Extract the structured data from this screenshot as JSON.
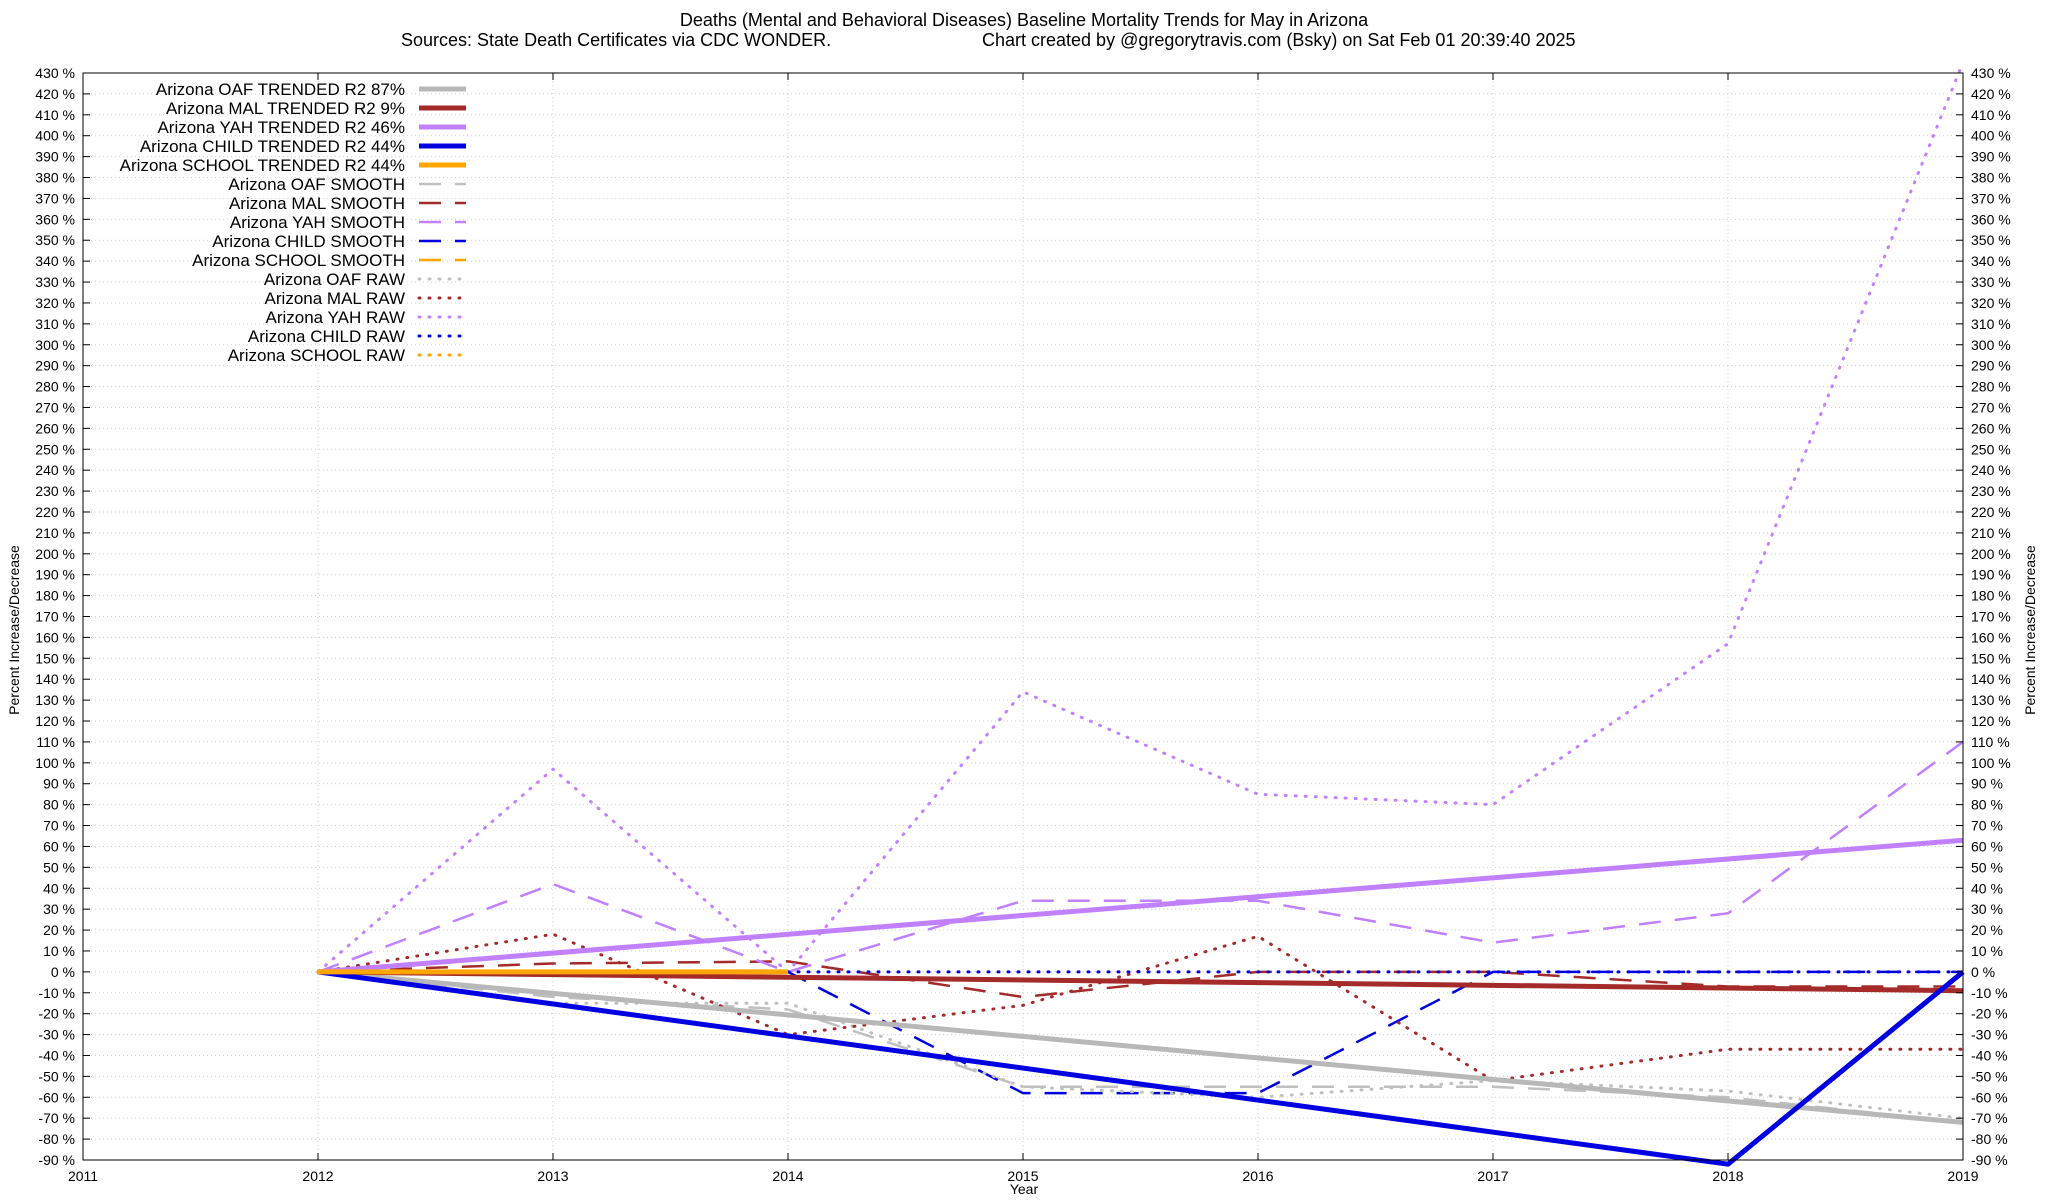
{
  "chart_data": {
    "type": "line",
    "title": "Deaths (Mental and Behavioral Diseases)  Baseline Mortality Trends for May in Arizona",
    "subtitle_left": "Sources: State Death Certificates via CDC WONDER.",
    "subtitle_right": "Chart created by @gregorytravis.com (Bsky) on Sat Feb 01 20:39:40 2025",
    "xlabel": "Year",
    "ylabel_left": "Percent Increase/Decrease",
    "ylabel_right": "Percent Increase/Decrease",
    "xlim": [
      2011,
      2019
    ],
    "ylim": [
      -90,
      430
    ],
    "x_ticks": [
      2011,
      2012,
      2013,
      2014,
      2015,
      2016,
      2017,
      2018,
      2019
    ],
    "y_tick_step": 10,
    "y_tick_suffix": " %",
    "grid": true,
    "legend_position": "top-left",
    "series": [
      {
        "name": "Arizona OAF TRENDED R2  87%",
        "style": "trend",
        "color": "#b8b8b8",
        "x": [
          2012,
          2019
        ],
        "y": [
          0,
          -72
        ]
      },
      {
        "name": "Arizona MAL TRENDED R2  9%",
        "style": "trend",
        "color": "#a52a2a",
        "x": [
          2012,
          2019
        ],
        "y": [
          0,
          -9
        ]
      },
      {
        "name": "Arizona YAH TRENDED R2  46%",
        "style": "trend",
        "color": "#c080ff",
        "x": [
          2012,
          2019
        ],
        "y": [
          0,
          63
        ]
      },
      {
        "name": "Arizona CHILD TRENDED R2  44%",
        "style": "trend",
        "color": "#0000e0",
        "x": [
          2012,
          2018,
          2019
        ],
        "y": [
          0,
          -92,
          0
        ]
      },
      {
        "name": "Arizona SCHOOL TRENDED R2  44%",
        "style": "trend",
        "color": "#ffa500",
        "x": [
          2012,
          2014
        ],
        "y": [
          0,
          0
        ]
      },
      {
        "name": "Arizona OAF SMOOTH",
        "style": "smooth",
        "color": "#c0c0c0",
        "x": [
          2012,
          2013,
          2014,
          2015,
          2016,
          2017,
          2018,
          2019
        ],
        "y": [
          0,
          -12,
          -18,
          -55,
          -55,
          -55,
          -60,
          -72
        ]
      },
      {
        "name": "Arizona MAL SMOOTH",
        "style": "smooth",
        "color": "#a52a2a",
        "x": [
          2012,
          2013,
          2014,
          2015,
          2016,
          2017,
          2018,
          2019
        ],
        "y": [
          0,
          4,
          5,
          -12,
          0,
          0,
          -7,
          -7
        ]
      },
      {
        "name": "Arizona YAH SMOOTH",
        "style": "smooth",
        "color": "#c080ff",
        "x": [
          2012,
          2013,
          2014,
          2015,
          2016,
          2017,
          2018,
          2019
        ],
        "y": [
          0,
          42,
          0,
          34,
          34,
          14,
          28,
          110
        ]
      },
      {
        "name": "Arizona CHILD SMOOTH",
        "style": "smooth",
        "color": "#0000e0",
        "x": [
          2012,
          2013,
          2014,
          2015,
          2016,
          2017,
          2018,
          2019
        ],
        "y": [
          0,
          0,
          0,
          -58,
          -58,
          0,
          0,
          0
        ]
      },
      {
        "name": "Arizona SCHOOL SMOOTH",
        "style": "smooth",
        "color": "#ffa500",
        "x": [
          2012,
          2013,
          2014
        ],
        "y": [
          0,
          0,
          0
        ]
      },
      {
        "name": "Arizona OAF RAW",
        "style": "raw",
        "color": "#c0c0c0",
        "x": [
          2012,
          2013,
          2014,
          2015,
          2016,
          2017,
          2018,
          2019
        ],
        "y": [
          0,
          -15,
          -15,
          -55,
          -60,
          -52,
          -57,
          -70
        ]
      },
      {
        "name": "Arizona MAL RAW",
        "style": "raw",
        "color": "#a52a2a",
        "x": [
          2012,
          2013,
          2014,
          2015,
          2016,
          2017,
          2018,
          2019
        ],
        "y": [
          0,
          18,
          -30,
          -16,
          17,
          -52,
          -37,
          -37
        ]
      },
      {
        "name": "Arizona YAH RAW",
        "style": "raw",
        "color": "#c080ff",
        "x": [
          2012,
          2013,
          2014,
          2015,
          2016,
          2017,
          2018,
          2019
        ],
        "y": [
          0,
          97,
          0,
          134,
          85,
          80,
          157,
          435
        ]
      },
      {
        "name": "Arizona CHILD RAW",
        "style": "raw",
        "color": "#0000e0",
        "x": [
          2012,
          2013,
          2014,
          2015,
          2016,
          2017,
          2018,
          2019
        ],
        "y": [
          0,
          0,
          0,
          0,
          0,
          0,
          0,
          0
        ]
      },
      {
        "name": "Arizona SCHOOL RAW",
        "style": "raw",
        "color": "#ffa500",
        "x": [
          2012,
          2013,
          2014
        ],
        "y": [
          0,
          0,
          0
        ]
      }
    ]
  }
}
